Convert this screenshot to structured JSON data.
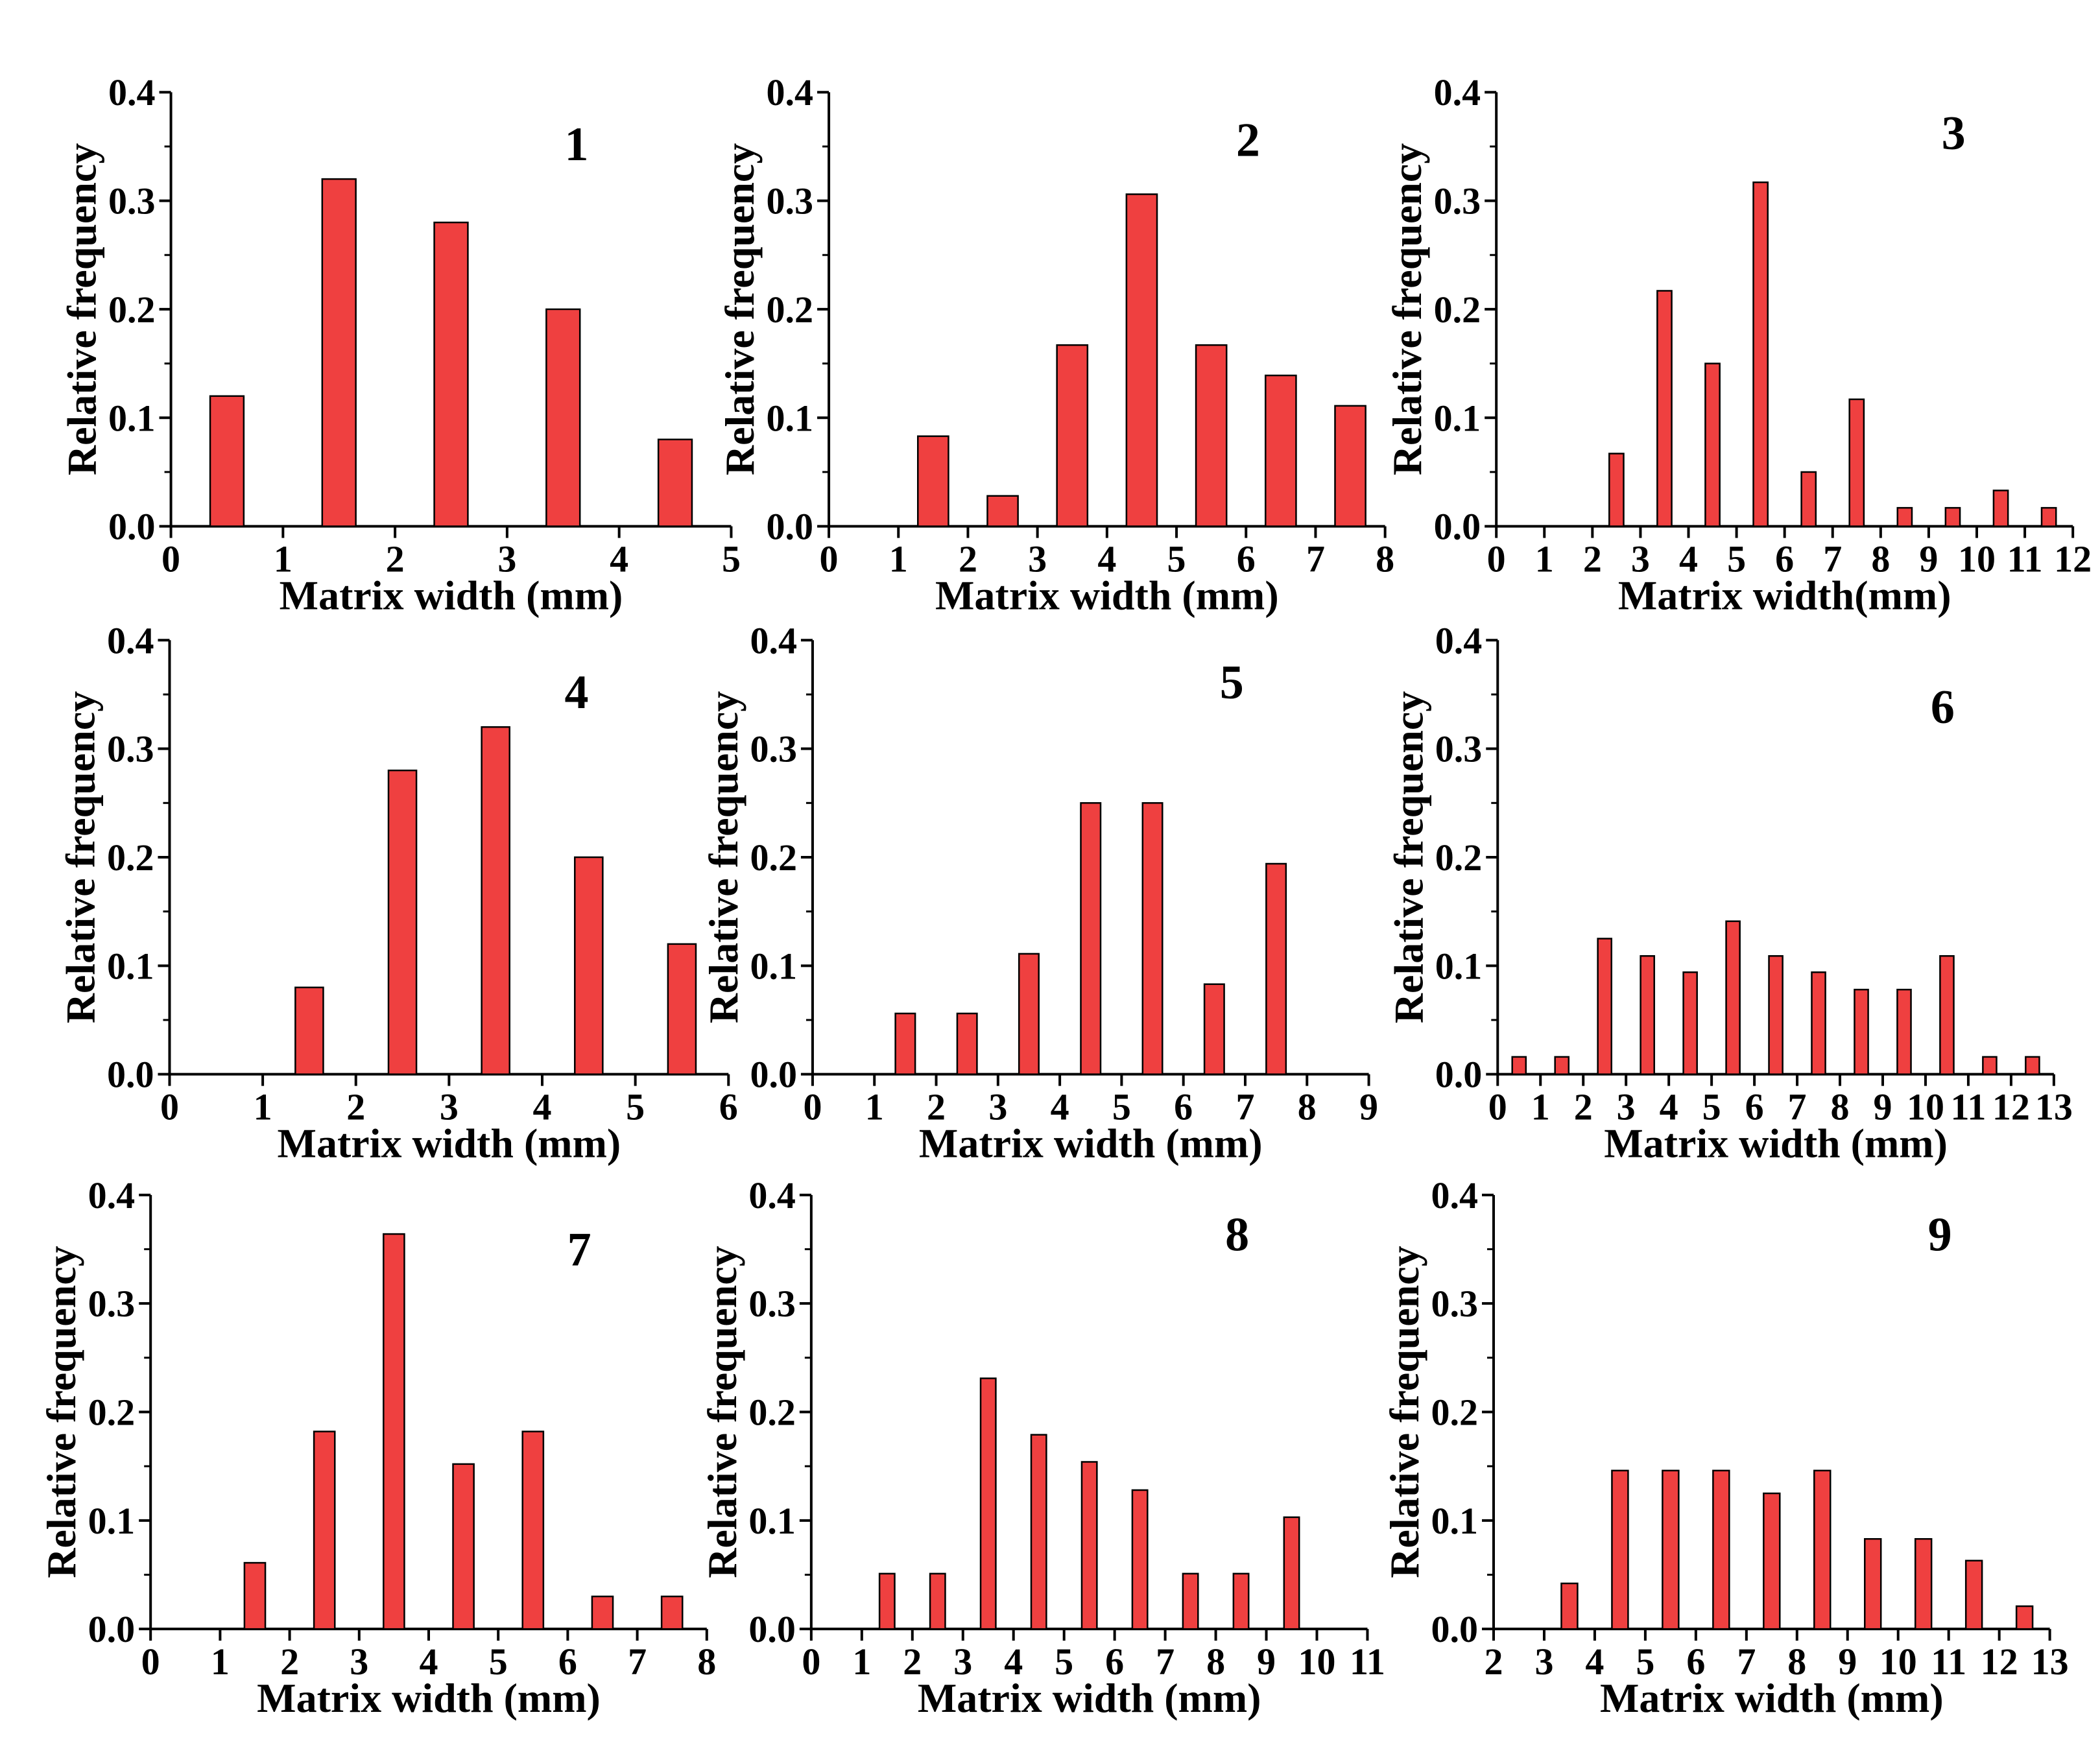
{
  "figure": {
    "bar_color": "#EF4040",
    "bar_stroke": "#000000"
  },
  "chart_data": [
    {
      "type": "bar",
      "panel": "1",
      "xlabel": "Matrix width (mm)",
      "ylabel": "Relative frequency",
      "xlim": [
        0,
        5
      ],
      "xticks": [
        "0",
        "1",
        "2",
        "3",
        "4",
        "5"
      ],
      "ylim": [
        0,
        0.4
      ],
      "yticks": [
        "0.0",
        "0.1",
        "0.2",
        "0.3",
        "0.4"
      ],
      "x": [
        0.5,
        1.5,
        2.5,
        3.5,
        4.5
      ],
      "values": [
        0.12,
        0.32,
        0.28,
        0.2,
        0.08
      ],
      "bar_width": 0.3
    },
    {
      "type": "bar",
      "panel": "2",
      "xlabel": "Matrix width  (mm)",
      "ylabel": "Relative frequency",
      "xlim": [
        0,
        8
      ],
      "xticks": [
        "0",
        "1",
        "2",
        "3",
        "4",
        "5",
        "6",
        "7",
        "8"
      ],
      "ylim": [
        0,
        0.4
      ],
      "yticks": [
        "0.0",
        "0.1",
        "0.2",
        "0.3",
        "0.4"
      ],
      "x": [
        1.5,
        2.5,
        3.5,
        4.5,
        5.5,
        6.5,
        7.5
      ],
      "values": [
        0.083,
        0.028,
        0.167,
        0.306,
        0.167,
        0.139,
        0.111
      ],
      "bar_width": 0.44
    },
    {
      "type": "bar",
      "panel": "3",
      "xlabel": "Matrix width(mm)",
      "ylabel": "Relative frequency",
      "xlim": [
        0,
        12
      ],
      "xticks": [
        "0",
        "1",
        "2",
        "3",
        "4",
        "5",
        "6",
        "7",
        "8",
        "9",
        "10",
        "11",
        "12"
      ],
      "ylim": [
        0,
        0.4
      ],
      "yticks": [
        "0.0",
        "0.1",
        "0.2",
        "0.3",
        "0.4"
      ],
      "x": [
        2.5,
        3.5,
        4.5,
        5.5,
        6.5,
        7.5,
        8.5,
        9.5,
        10.5,
        11.5
      ],
      "values": [
        0.067,
        0.217,
        0.15,
        0.317,
        0.05,
        0.117,
        0.017,
        0.017,
        0.033,
        0.017
      ],
      "bar_width": 0.3
    },
    {
      "type": "bar",
      "panel": "4",
      "xlabel": "Matrix width (mm)",
      "ylabel": "Relative frequency",
      "xlim": [
        0,
        6
      ],
      "xticks": [
        "0",
        "1",
        "2",
        "3",
        "4",
        "5",
        "6"
      ],
      "ylim": [
        0,
        0.4
      ],
      "yticks": [
        "0.0",
        "0.1",
        "0.2",
        "0.3",
        "0.4"
      ],
      "x": [
        1.5,
        2.5,
        3.5,
        4.5,
        5.5
      ],
      "values": [
        0.08,
        0.28,
        0.32,
        0.2,
        0.12
      ],
      "bar_width": 0.3
    },
    {
      "type": "bar",
      "panel": "5",
      "xlabel": "Matrix width (mm)",
      "ylabel": "Relative frequency",
      "xlim": [
        0,
        9
      ],
      "xticks": [
        "0",
        "1",
        "2",
        "3",
        "4",
        "5",
        "6",
        "7",
        "8",
        "9"
      ],
      "ylim": [
        0,
        0.4
      ],
      "yticks": [
        "0.0",
        "0.1",
        "0.2",
        "0.3",
        "0.4"
      ],
      "x": [
        1.5,
        2.5,
        3.5,
        4.5,
        5.5,
        6.5,
        7.5
      ],
      "values": [
        0.056,
        0.056,
        0.111,
        0.25,
        0.25,
        0.083,
        0.194
      ],
      "bar_width": 0.32
    },
    {
      "type": "bar",
      "panel": "6",
      "xlabel": "Matrix width (mm)",
      "ylabel": "Relative frequency",
      "xlim": [
        0,
        13
      ],
      "xticks": [
        "0",
        "1",
        "2",
        "3",
        "4",
        "5",
        "6",
        "7",
        "8",
        "9",
        "10",
        "11",
        "12",
        "13"
      ],
      "ylim": [
        0,
        0.4
      ],
      "yticks": [
        "0.0",
        "0.1",
        "0.2",
        "0.3",
        "0.4"
      ],
      "x": [
        0.5,
        1.5,
        2.5,
        3.5,
        4.5,
        5.5,
        6.5,
        7.5,
        8.5,
        9.5,
        10.5,
        11.5,
        12.5
      ],
      "values": [
        0.016,
        0.016,
        0.125,
        0.109,
        0.094,
        0.141,
        0.109,
        0.094,
        0.078,
        0.078,
        0.109,
        0.016,
        0.016
      ],
      "bar_width": 0.32
    },
    {
      "type": "bar",
      "panel": "7",
      "xlabel": "Matrix width (mm)",
      "ylabel": "Relative frequency",
      "xlim": [
        0,
        8
      ],
      "xticks": [
        "0",
        "1",
        "2",
        "3",
        "4",
        "5",
        "6",
        "7",
        "8"
      ],
      "ylim": [
        0,
        0.4
      ],
      "yticks": [
        "0.0",
        "0.1",
        "0.2",
        "0.3",
        "0.4"
      ],
      "x": [
        1.5,
        2.5,
        3.5,
        4.5,
        5.5,
        6.5,
        7.5
      ],
      "values": [
        0.061,
        0.182,
        0.364,
        0.152,
        0.182,
        0.03,
        0.03
      ],
      "bar_width": 0.3
    },
    {
      "type": "bar",
      "panel": "8",
      "xlabel": "Matrix width (mm)",
      "ylabel": "Relative frequency",
      "xlim": [
        0,
        11
      ],
      "xticks": [
        "0",
        "1",
        "2",
        "3",
        "4",
        "5",
        "6",
        "7",
        "8",
        "9",
        "10",
        "11"
      ],
      "ylim": [
        0,
        0.4
      ],
      "yticks": [
        "0.0",
        "0.1",
        "0.2",
        "0.3",
        "0.4"
      ],
      "x": [
        1.5,
        2.5,
        3.5,
        4.5,
        5.5,
        6.5,
        7.5,
        8.5,
        9.5
      ],
      "values": [
        0.051,
        0.051,
        0.231,
        0.179,
        0.154,
        0.128,
        0.051,
        0.051,
        0.103
      ],
      "bar_width": 0.3
    },
    {
      "type": "bar",
      "panel": "9",
      "xlabel": "Matrix width  (mm)",
      "ylabel": "Relative frequency",
      "xlim": [
        2,
        13
      ],
      "xticks": [
        "2",
        "3",
        "4",
        "5",
        "6",
        "7",
        "8",
        "9",
        "10",
        "11",
        "12",
        "13"
      ],
      "ylim": [
        0,
        0.4
      ],
      "yticks": [
        "0.0",
        "0.1",
        "0.2",
        "0.3",
        "0.4"
      ],
      "x": [
        3.5,
        4.5,
        5.5,
        6.5,
        7.5,
        8.5,
        9.5,
        10.5,
        11.5,
        12.5
      ],
      "values": [
        0.042,
        0.146,
        0.146,
        0.146,
        0.125,
        0.146,
        0.083,
        0.083,
        0.063,
        0.021
      ],
      "bar_width": 0.32
    }
  ]
}
